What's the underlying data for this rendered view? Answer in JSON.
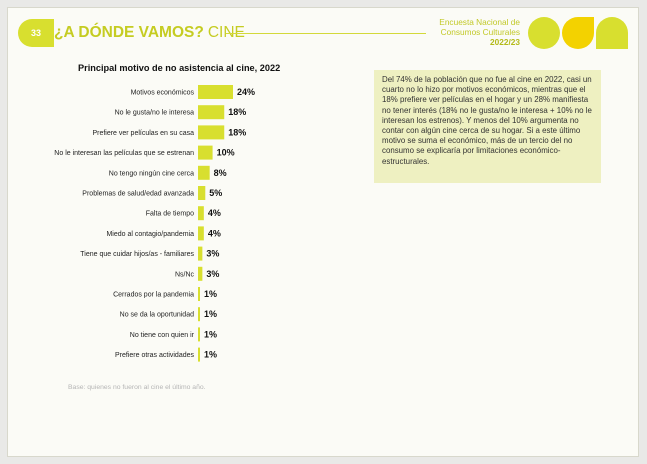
{
  "header": {
    "page_number": "33",
    "section_title_bold": "¿A DÓNDE VAMOS?",
    "section_title_light": "CINE",
    "survey_line1": "Encuesta Nacional de",
    "survey_line2": "Consumos Culturales",
    "survey_year": "2022/23"
  },
  "colors": {
    "accent": "#d8df2f",
    "accent_yellow": "#f3d200",
    "note_bg": "#eef0c1"
  },
  "note": "Del 74% de la población que no fue al cine en 2022, casi un cuarto no lo hizo por motivos económicos, mientras que el 18% prefiere ver películas en el hogar y un 28% manifiesta no tener interés (18% no le gusta/no le interesa + 10% no le interesan los estrenos). Y menos del 10% argumenta no contar con algún cine cerca de su hogar. Si a este último motivo se suma el económico, más de un tercio del no consumo se explicaría por limitaciones económico-estructurales.",
  "base_note": "Base: quienes no fueron al cine el último año.",
  "chart_data": {
    "type": "bar",
    "orientation": "horizontal",
    "title": "Principal motivo de no asistencia al cine, 2022",
    "categories": [
      "Motivos económicos",
      "No le gusta/no le interesa",
      "Prefiere ver películas en su casa",
      "No le interesan las películas que se estrenan",
      "No tengo ningún cine cerca",
      "Problemas de salud/edad avanzada",
      "Falta de tiempo",
      "Miedo al contagio/pandemia",
      "Tiene que cuidar hijos/as - familiares",
      "Ns/Nc",
      "Cerrados por la pandemia",
      "No se da la oportunidad",
      "No tiene con quien ir",
      "Prefiere otras actividades"
    ],
    "values": [
      24,
      18,
      18,
      10,
      8,
      5,
      4,
      4,
      3,
      3,
      1,
      1,
      1,
      1
    ],
    "value_labels": [
      "24%",
      "18%",
      "18%",
      "10%",
      "8%",
      "5%",
      "4%",
      "4%",
      "3%",
      "3%",
      "1%",
      "1%",
      "1%",
      "1%"
    ],
    "bar_color": "#d8df2f"
  }
}
